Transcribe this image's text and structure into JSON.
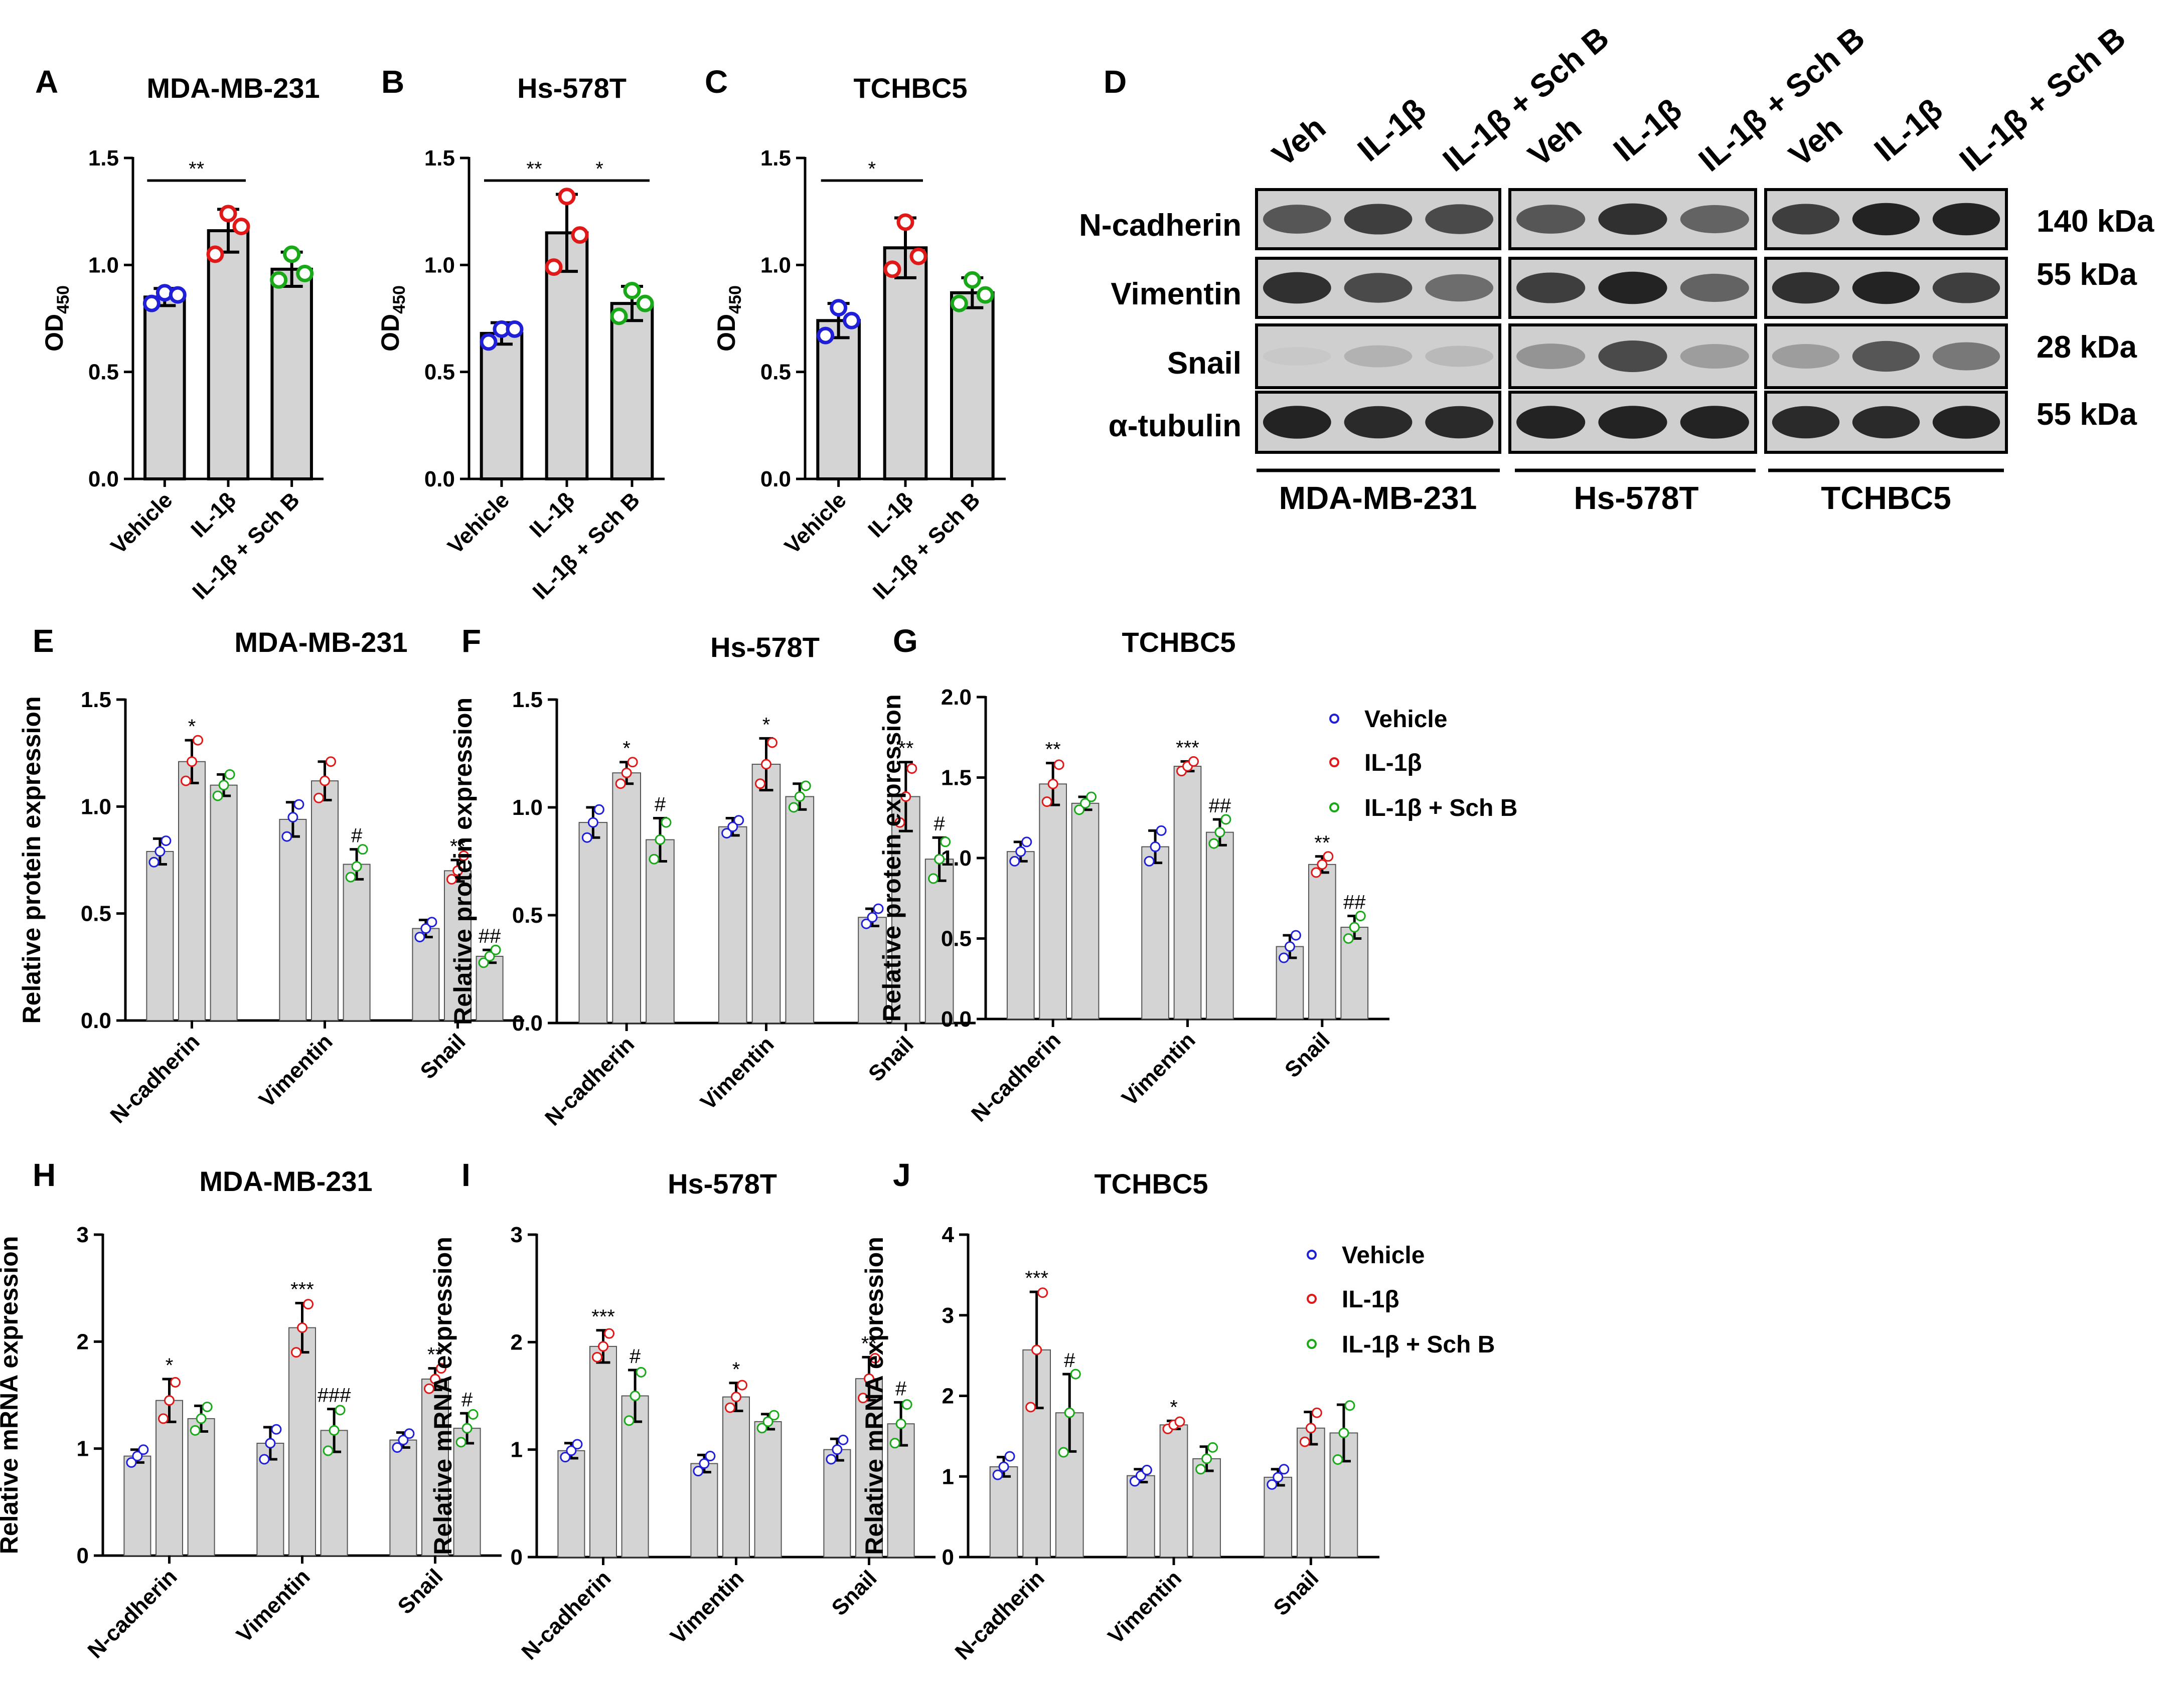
{
  "colors": {
    "vehicle": "#1f1fd8",
    "il1b": "#e01818",
    "sch": "#18a818",
    "bar": "#d4d4d4"
  },
  "legend": {
    "entries": [
      "Vehicle",
      "IL-1β",
      "IL-1β + Sch B"
    ]
  },
  "western_blot": {
    "panel_label": "D",
    "lanes": [
      "Veh",
      "IL-1β",
      "IL-1β + Sch B",
      "Veh",
      "IL-1β",
      "IL-1β + Sch B",
      "Veh",
      "IL-1β",
      "IL-1β + Sch B"
    ],
    "proteins": [
      "N-cadherin",
      "Vimentin",
      "Snail",
      "α-tubulin"
    ],
    "kda": [
      "140 kDa",
      "55 kDa",
      "28 kDa",
      "55 kDa"
    ],
    "cell_lines": [
      "MDA-MB-231",
      "Hs-578T",
      "TCHBC5"
    ]
  },
  "chart_data": [
    {
      "id": "A",
      "panel_label": "A",
      "type": "bar",
      "title": "MDA-MB-231",
      "ylabel": "OD450",
      "ylim": [
        0,
        1.5
      ],
      "yticks": [
        "0.0",
        "0.5",
        "1.0",
        "1.5"
      ],
      "categories": [
        "Vehicle",
        "IL-1β",
        "IL-1β + Sch B"
      ],
      "values": [
        0.85,
        1.16,
        0.98
      ],
      "errors": [
        0.04,
        0.1,
        0.08
      ],
      "points": [
        [
          0.82,
          0.87,
          0.86
        ],
        [
          1.05,
          1.24,
          1.18
        ],
        [
          0.93,
          1.05,
          0.96
        ]
      ],
      "significance": [
        {
          "from": 0,
          "to": 1,
          "label": "**"
        }
      ]
    },
    {
      "id": "B",
      "panel_label": "B",
      "type": "bar",
      "title": "Hs-578T",
      "ylabel": "OD450",
      "ylim": [
        0,
        1.5
      ],
      "yticks": [
        "0.0",
        "0.5",
        "1.0",
        "1.5"
      ],
      "categories": [
        "Vehicle",
        "IL-1β",
        "IL-1β + Sch B"
      ],
      "values": [
        0.68,
        1.15,
        0.82
      ],
      "errors": [
        0.05,
        0.18,
        0.08
      ],
      "points": [
        [
          0.64,
          0.7,
          0.7
        ],
        [
          0.99,
          1.32,
          1.14
        ],
        [
          0.76,
          0.88,
          0.82
        ]
      ],
      "significance": [
        {
          "from": 0,
          "to": 1,
          "label": "**"
        },
        {
          "from": 1,
          "to": 2,
          "label": "*"
        }
      ]
    },
    {
      "id": "C",
      "panel_label": "C",
      "type": "bar",
      "title": "TCHBC5",
      "ylabel": "OD450",
      "ylim": [
        0,
        1.5
      ],
      "yticks": [
        "0.0",
        "0.5",
        "1.0",
        "1.5"
      ],
      "categories": [
        "Vehicle",
        "IL-1β",
        "IL-1β + Sch B"
      ],
      "values": [
        0.74,
        1.08,
        0.87
      ],
      "errors": [
        0.08,
        0.14,
        0.07
      ],
      "points": [
        [
          0.67,
          0.8,
          0.74
        ],
        [
          0.98,
          1.2,
          1.04
        ],
        [
          0.82,
          0.93,
          0.86
        ]
      ],
      "significance": [
        {
          "from": 0,
          "to": 1,
          "label": "*"
        }
      ]
    },
    {
      "id": "E",
      "panel_label": "E",
      "type": "grouped_bar",
      "title": "MDA-MB-231",
      "ylabel": "Relative protein expression",
      "ylim": [
        0,
        1.5
      ],
      "yticks": [
        "0.0",
        "0.5",
        "1.0",
        "1.5"
      ],
      "categories": [
        "N-cadherin",
        "Vimentin",
        "Snail"
      ],
      "series": [
        {
          "name": "Vehicle",
          "values": [
            0.79,
            0.94,
            0.43
          ],
          "errors": [
            0.06,
            0.08,
            0.04
          ],
          "points": [
            [
              0.74,
              0.79,
              0.84
            ],
            [
              0.86,
              0.95,
              1.01
            ],
            [
              0.39,
              0.43,
              0.46
            ]
          ],
          "marks": [
            "",
            "",
            ""
          ]
        },
        {
          "name": "IL-1β",
          "values": [
            1.21,
            1.12,
            0.7
          ],
          "errors": [
            0.1,
            0.09,
            0.05
          ],
          "points": [
            [
              1.12,
              1.21,
              1.31
            ],
            [
              1.04,
              1.12,
              1.21
            ],
            [
              0.66,
              0.7,
              0.77
            ]
          ],
          "marks": [
            "*",
            "",
            "**"
          ]
        },
        {
          "name": "IL-1β + Sch B",
          "values": [
            1.1,
            0.73,
            0.3
          ],
          "errors": [
            0.05,
            0.07,
            0.03
          ],
          "points": [
            [
              1.05,
              1.1,
              1.15
            ],
            [
              0.67,
              0.72,
              0.8
            ],
            [
              0.27,
              0.3,
              0.33
            ]
          ],
          "marks": [
            "",
            "#",
            "##"
          ]
        }
      ]
    },
    {
      "id": "F",
      "panel_label": "F",
      "type": "grouped_bar",
      "title": "Hs-578T",
      "ylabel": "Relative protein expression",
      "ylim": [
        0,
        1.5
      ],
      "yticks": [
        "0.0",
        "0.5",
        "1.0",
        "1.5"
      ],
      "categories": [
        "N-cadherin",
        "Vimentin",
        "Snail"
      ],
      "series": [
        {
          "name": "Vehicle",
          "values": [
            0.93,
            0.91,
            0.49
          ],
          "errors": [
            0.07,
            0.04,
            0.04
          ],
          "points": [
            [
              0.86,
              0.93,
              0.99
            ],
            [
              0.88,
              0.91,
              0.94
            ],
            [
              0.46,
              0.49,
              0.53
            ]
          ],
          "marks": [
            "",
            "",
            ""
          ]
        },
        {
          "name": "IL-1β",
          "values": [
            1.16,
            1.2,
            1.05
          ],
          "errors": [
            0.05,
            0.12,
            0.16
          ],
          "points": [
            [
              1.11,
              1.16,
              1.21
            ],
            [
              1.11,
              1.2,
              1.3
            ],
            [
              0.93,
              1.05,
              1.18
            ]
          ],
          "marks": [
            "*",
            "*",
            "**"
          ]
        },
        {
          "name": "IL-1β + Sch B",
          "values": [
            0.85,
            1.05,
            0.76
          ],
          "errors": [
            0.1,
            0.06,
            0.1
          ],
          "points": [
            [
              0.76,
              0.85,
              0.93
            ],
            [
              1.0,
              1.05,
              1.1
            ],
            [
              0.67,
              0.76,
              0.84
            ]
          ],
          "marks": [
            "#",
            "",
            "#"
          ]
        }
      ]
    },
    {
      "id": "G",
      "panel_label": "G",
      "type": "grouped_bar",
      "title": "TCHBC5",
      "ylabel": "Relative protein expression",
      "ylim": [
        0,
        2.0
      ],
      "yticks": [
        "0.0",
        "0.5",
        "1.0",
        "1.5",
        "2.0"
      ],
      "categories": [
        "N-cadherin",
        "Vimentin",
        "Snail"
      ],
      "series": [
        {
          "name": "Vehicle",
          "values": [
            1.04,
            1.07,
            0.45
          ],
          "errors": [
            0.06,
            0.1,
            0.07
          ],
          "points": [
            [
              0.98,
              1.04,
              1.1
            ],
            [
              0.98,
              1.07,
              1.17
            ],
            [
              0.38,
              0.45,
              0.52
            ]
          ],
          "marks": [
            "",
            "",
            ""
          ]
        },
        {
          "name": "IL-1β",
          "values": [
            1.46,
            1.57,
            0.96
          ],
          "errors": [
            0.13,
            0.03,
            0.05
          ],
          "points": [
            [
              1.35,
              1.46,
              1.58
            ],
            [
              1.54,
              1.57,
              1.6
            ],
            [
              0.91,
              0.96,
              1.01
            ]
          ],
          "marks": [
            "**",
            "***",
            "**"
          ]
        },
        {
          "name": "IL-1β + Sch B",
          "values": [
            1.34,
            1.16,
            0.57
          ],
          "errors": [
            0.04,
            0.08,
            0.07
          ],
          "points": [
            [
              1.3,
              1.34,
              1.38
            ],
            [
              1.09,
              1.16,
              1.24
            ],
            [
              0.5,
              0.57,
              0.64
            ]
          ],
          "marks": [
            "",
            "##",
            "##"
          ]
        }
      ]
    },
    {
      "id": "H",
      "panel_label": "H",
      "type": "grouped_bar",
      "title": "MDA-MB-231",
      "ylabel": "Relative mRNA expression",
      "ylim": [
        0,
        3
      ],
      "yticks": [
        "0",
        "1",
        "2",
        "3"
      ],
      "categories": [
        "N-cadherin",
        "Vimentin",
        "Snail"
      ],
      "series": [
        {
          "name": "Vehicle",
          "values": [
            0.93,
            1.05,
            1.08
          ],
          "errors": [
            0.06,
            0.15,
            0.07
          ],
          "points": [
            [
              0.87,
              0.93,
              0.99
            ],
            [
              0.9,
              1.05,
              1.18
            ],
            [
              1.01,
              1.08,
              1.14
            ]
          ],
          "marks": [
            "",
            "",
            ""
          ]
        },
        {
          "name": "IL-1β",
          "values": [
            1.45,
            2.13,
            1.65
          ],
          "errors": [
            0.2,
            0.23,
            0.1
          ],
          "points": [
            [
              1.28,
              1.45,
              1.62
            ],
            [
              1.9,
              2.13,
              2.35
            ],
            [
              1.56,
              1.65,
              1.75
            ]
          ],
          "marks": [
            "*",
            "***",
            "**"
          ]
        },
        {
          "name": "IL-1β + Sch B",
          "values": [
            1.28,
            1.17,
            1.19
          ],
          "errors": [
            0.12,
            0.2,
            0.14
          ],
          "points": [
            [
              1.17,
              1.28,
              1.39
            ],
            [
              0.98,
              1.17,
              1.36
            ],
            [
              1.06,
              1.19,
              1.32
            ]
          ],
          "marks": [
            "",
            "###",
            "#"
          ]
        }
      ]
    },
    {
      "id": "I",
      "panel_label": "I",
      "type": "grouped_bar",
      "title": "Hs-578T",
      "ylabel": "Relative mRNA expression",
      "ylim": [
        0,
        3
      ],
      "yticks": [
        "0",
        "1",
        "2",
        "3"
      ],
      "categories": [
        "N-cadherin",
        "Vimentin",
        "Snail"
      ],
      "series": [
        {
          "name": "Vehicle",
          "values": [
            0.99,
            0.87,
            1.0
          ],
          "errors": [
            0.07,
            0.08,
            0.1
          ],
          "points": [
            [
              0.93,
              0.99,
              1.05
            ],
            [
              0.8,
              0.87,
              0.94
            ],
            [
              0.91,
              1.0,
              1.09
            ]
          ],
          "marks": [
            "",
            "",
            ""
          ]
        },
        {
          "name": "IL-1β",
          "values": [
            1.96,
            1.49,
            1.66
          ],
          "errors": [
            0.15,
            0.13,
            0.2
          ],
          "points": [
            [
              1.86,
              1.96,
              2.08
            ],
            [
              1.39,
              1.49,
              1.6
            ],
            [
              1.48,
              1.66,
              1.85
            ]
          ],
          "marks": [
            "***",
            "*",
            "**"
          ]
        },
        {
          "name": "IL-1β + Sch B",
          "values": [
            1.5,
            1.26,
            1.24
          ],
          "errors": [
            0.24,
            0.07,
            0.2
          ],
          "points": [
            [
              1.27,
              1.5,
              1.72
            ],
            [
              1.2,
              1.26,
              1.32
            ],
            [
              1.06,
              1.24,
              1.42
            ]
          ],
          "marks": [
            "#",
            "",
            "#"
          ]
        }
      ]
    },
    {
      "id": "J",
      "panel_label": "J",
      "type": "grouped_bar",
      "title": "TCHBC5",
      "ylabel": "Relative mRNA expression",
      "ylim": [
        0,
        4
      ],
      "yticks": [
        "0",
        "1",
        "2",
        "3",
        "4"
      ],
      "categories": [
        "N-cadherin",
        "Vimentin",
        "Snail"
      ],
      "series": [
        {
          "name": "Vehicle",
          "values": [
            1.12,
            1.01,
            0.99
          ],
          "errors": [
            0.12,
            0.08,
            0.1
          ],
          "points": [
            [
              1.02,
              1.12,
              1.25
            ],
            [
              0.94,
              1.01,
              1.08
            ],
            [
              0.9,
              0.99,
              1.09
            ]
          ],
          "marks": [
            "",
            "",
            ""
          ]
        },
        {
          "name": "IL-1β",
          "values": [
            2.57,
            1.64,
            1.6
          ],
          "errors": [
            0.72,
            0.05,
            0.2
          ],
          "points": [
            [
              1.86,
              2.57,
              3.28
            ],
            [
              1.59,
              1.64,
              1.68
            ],
            [
              1.43,
              1.6,
              1.79
            ]
          ],
          "marks": [
            "***",
            "*",
            ""
          ]
        },
        {
          "name": "IL-1β + Sch B",
          "values": [
            1.79,
            1.22,
            1.54
          ],
          "errors": [
            0.48,
            0.15,
            0.35
          ],
          "points": [
            [
              1.3,
              1.79,
              2.27
            ],
            [
              1.09,
              1.22,
              1.36
            ],
            [
              1.21,
              1.54,
              1.88
            ]
          ],
          "marks": [
            "#",
            "",
            ""
          ]
        }
      ]
    }
  ]
}
